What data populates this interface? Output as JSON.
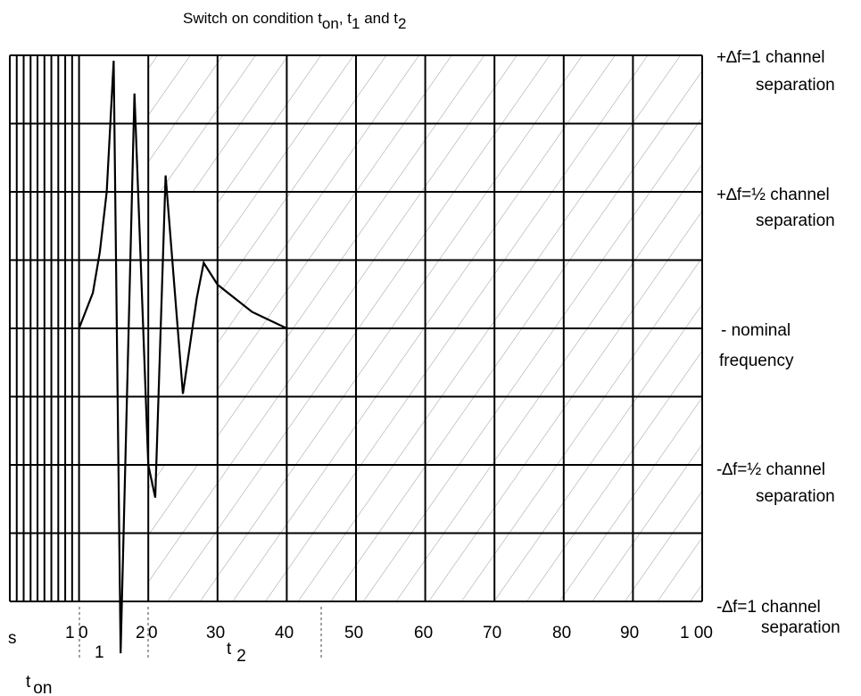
{
  "title": {
    "main": "Switch on condition t",
    "sub_on": "on",
    "comma": ", t",
    "sub_1": "1",
    "and": " and t",
    "sub_2": "2"
  },
  "right_labels": {
    "plus_full_line1": "+∆f=1 channel",
    "plus_full_line2": "separation",
    "plus_half_line1": "+∆f=½ channel",
    "plus_half_line2": "separation",
    "nominal_line1": "- nominal",
    "nominal_line2": "frequency",
    "minus_half_line1": "-∆f=½ channel",
    "minus_half_line2": "separation",
    "minus_full_line1": "-∆f=1 channel",
    "minus_full_line2": "separation"
  },
  "x_axis": {
    "unit": "s",
    "ticks": [
      "1",
      "0",
      "2",
      "0",
      "30",
      "40",
      "50",
      "60",
      "70",
      "80",
      "90",
      "1 00"
    ]
  },
  "markers": {
    "t1": "1",
    "t2_t": "t",
    "t2_sub": "2",
    "ton_t": "t",
    "ton_sub": "on"
  },
  "chart_data": {
    "type": "line",
    "xlim": [
      0,
      100
    ],
    "ylim": [
      -1,
      1
    ],
    "y_levels": [
      1,
      0.5,
      0,
      -0.5,
      -1
    ],
    "hatched_regions": "tolerance mask: |∆f| > 1/2 channel from 20 s; |∆f| > 1 channel... shown as hatched areas",
    "curve": [
      {
        "x": 10,
        "y": 0
      },
      {
        "x": 12,
        "y": 0.13
      },
      {
        "x": 13,
        "y": 0.28
      },
      {
        "x": 14,
        "y": 0.5
      },
      {
        "x": 15,
        "y": 0.98
      },
      {
        "x": 16,
        "y": -1.19
      },
      {
        "x": 18,
        "y": 0.86
      },
      {
        "x": 20,
        "y": -0.5
      },
      {
        "x": 21,
        "y": -0.62
      },
      {
        "x": 22.5,
        "y": 0.56
      },
      {
        "x": 25,
        "y": -0.24
      },
      {
        "x": 27,
        "y": 0.11
      },
      {
        "x": 28,
        "y": 0.24
      },
      {
        "x": 30,
        "y": 0.16
      },
      {
        "x": 35,
        "y": 0.06
      },
      {
        "x": 40,
        "y": 0
      }
    ]
  }
}
